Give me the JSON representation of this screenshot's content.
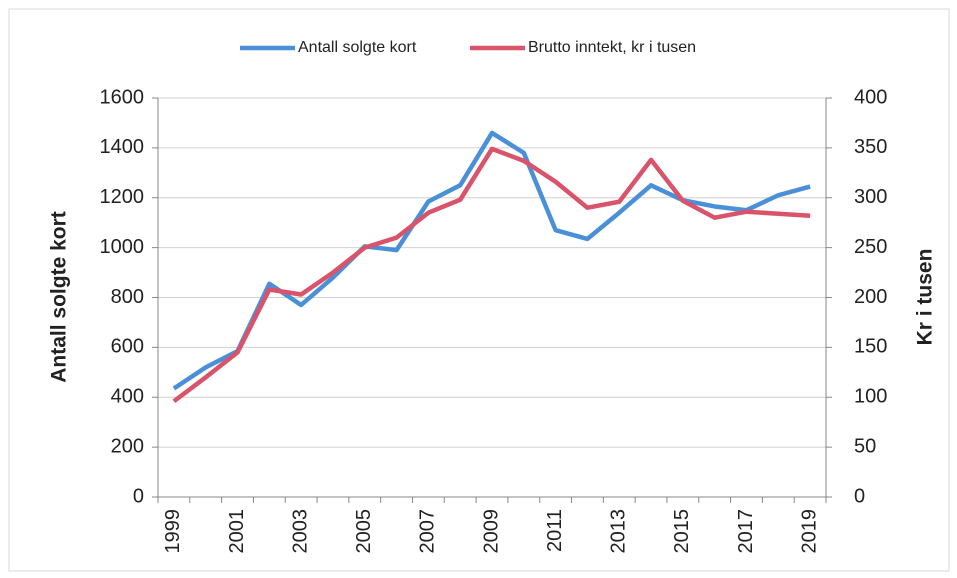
{
  "chart_data": {
    "type": "line",
    "categories": [
      "1999",
      null,
      "2001",
      null,
      "2003",
      null,
      "2005",
      null,
      "2007",
      null,
      "2009",
      null,
      "2011",
      null,
      "2013",
      null,
      "2015",
      null,
      "2017",
      null,
      "2019"
    ],
    "series": [
      {
        "name": "Antall solgte kort",
        "color": "#4a90d9",
        "values": [
          435,
          520,
          585,
          855,
          770,
          880,
          1005,
          990,
          1185,
          1250,
          1460,
          1380,
          1070,
          1035,
          1140,
          1250,
          1190,
          1165,
          1150,
          1210,
          1245
        ]
      },
      {
        "name": "Brutto inntekt, kr i tusen",
        "color": "#d9536a",
        "axis": "y2",
        "values": [
          96,
          120,
          145,
          208,
          203,
          225,
          250,
          260,
          285,
          298,
          349,
          337,
          316,
          290,
          296,
          338,
          297,
          280,
          286,
          284,
          282
        ]
      }
    ],
    "ylabel": "Antall solgte kort",
    "y2label": "Kr i tusen",
    "ylim": [
      0,
      1600
    ],
    "yticks": [
      0,
      200,
      400,
      600,
      800,
      1000,
      1200,
      1400,
      1600
    ],
    "y2lim": [
      0,
      400
    ],
    "y2ticks": [
      0,
      50,
      100,
      150,
      200,
      250,
      300,
      350,
      400
    ],
    "grid": true,
    "legend": "top"
  }
}
